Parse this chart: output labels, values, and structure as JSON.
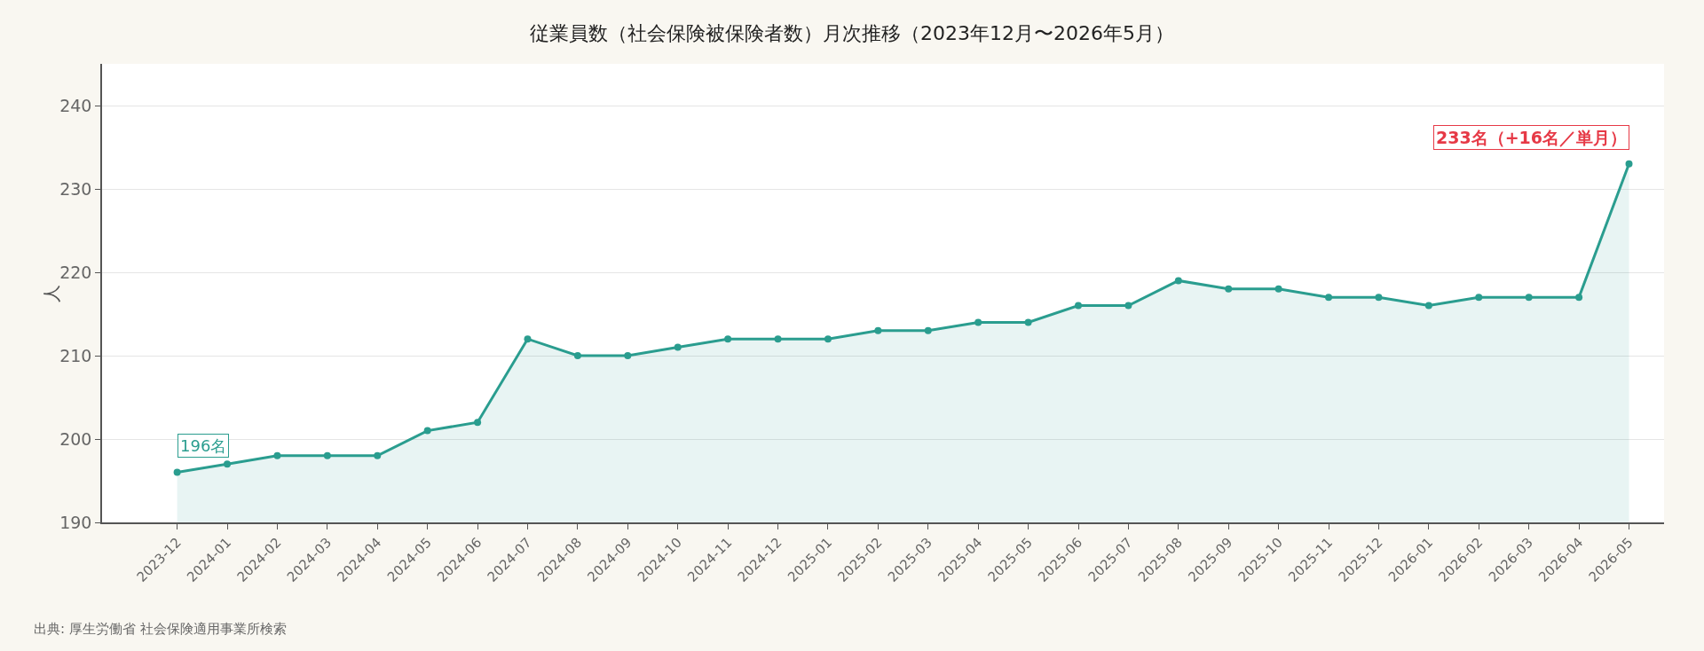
{
  "chart_data": {
    "type": "area",
    "title": "従業員数（社会保険被保険者数）月次推移（2023年12月〜2026年5月）",
    "ylabel": "人",
    "categories": [
      "2023-12",
      "2024-01",
      "2024-02",
      "2024-03",
      "2024-04",
      "2024-05",
      "2024-06",
      "2024-07",
      "2024-08",
      "2024-09",
      "2024-10",
      "2024-11",
      "2024-12",
      "2025-01",
      "2025-02",
      "2025-03",
      "2025-04",
      "2025-05",
      "2025-06",
      "2025-07",
      "2025-08",
      "2025-09",
      "2025-10",
      "2025-11",
      "2025-12",
      "2026-01",
      "2026-02",
      "2026-03",
      "2026-04",
      "2026-05"
    ],
    "series": [
      {
        "color": "#2a9d8f",
        "values": [
          196,
          197,
          198,
          198,
          198,
          201,
          202,
          212,
          210,
          210,
          211,
          212,
          212,
          212,
          213,
          213,
          214,
          214,
          216,
          216,
          219,
          218,
          218,
          217,
          217,
          216,
          217,
          217,
          217,
          233
        ]
      }
    ],
    "ylim": [
      190,
      245
    ],
    "yticks": [
      190,
      200,
      210,
      220,
      230,
      240
    ],
    "grid": "y",
    "marker": "circle",
    "line_style": "solid",
    "annotations": [
      {
        "text": "196名",
        "x": "2023-12",
        "y": 196
      },
      {
        "text": "233名（+16名／単月）",
        "x": "2026-05",
        "y": 233
      },
      "出典: 厚生労働省 社会保険適用事業所検索"
    ]
  }
}
